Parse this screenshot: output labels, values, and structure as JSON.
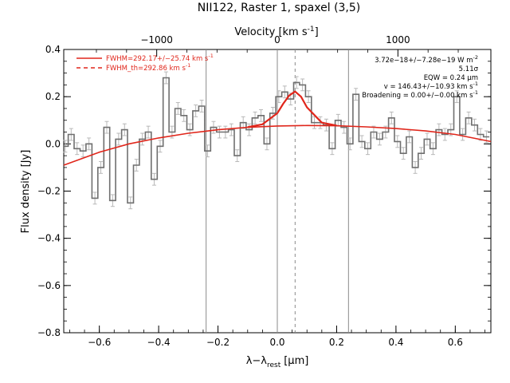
{
  "colors": {
    "data": "#6f6f6f",
    "errbar": "#b8b8b8",
    "fit": "#e0261b",
    "vline": "#8a8a8a"
  },
  "chart_data": {
    "type": "line",
    "title": "NII122, Raster 1, spaxel (3,5)",
    "xlabel": "λ−λ",
    "xlabel_sub": "rest",
    "xlabel_unit": "[μm]",
    "ylabel": "Flux density [Jy]",
    "top_xlabel": "Velocity [km s",
    "top_xlabel_exp": "-1",
    "top_xlabel_close": "]",
    "xlim": [
      -0.72,
      0.72
    ],
    "ylim": [
      -0.8,
      0.4
    ],
    "grid": false,
    "legend_position": "top-left",
    "xticks": [
      -0.6,
      -0.4,
      -0.2,
      0.0,
      0.2,
      0.4,
      0.6
    ],
    "xtick_labels": [
      "−0.6",
      "−0.4",
      "−0.2",
      "0.0",
      "0.2",
      "0.4",
      "0.6"
    ],
    "yticks": [
      -0.8,
      -0.6,
      -0.4,
      -0.2,
      0.0,
      0.2,
      0.4
    ],
    "ytick_labels": [
      "−0.8",
      "−0.6",
      "−0.4",
      "−0.2",
      "0.0",
      "0.2",
      "0.4"
    ],
    "velocity_ticks": [
      -1000,
      0,
      1000
    ],
    "velocity_tick_labels": [
      "−1000",
      "0",
      "1000"
    ],
    "vertical_lines": [
      -0.24,
      0.0,
      0.24
    ],
    "dashed_line": 0.06,
    "spectrum": {
      "x": [
        -0.715,
        -0.695,
        -0.675,
        -0.655,
        -0.635,
        -0.615,
        -0.595,
        -0.575,
        -0.555,
        -0.535,
        -0.515,
        -0.495,
        -0.475,
        -0.455,
        -0.435,
        -0.415,
        -0.395,
        -0.375,
        -0.355,
        -0.335,
        -0.315,
        -0.295,
        -0.275,
        -0.255,
        -0.235,
        -0.215,
        -0.195,
        -0.175,
        -0.155,
        -0.135,
        -0.115,
        -0.095,
        -0.075,
        -0.055,
        -0.035,
        -0.015,
        0.005,
        0.025,
        0.045,
        0.065,
        0.085,
        0.105,
        0.125,
        0.145,
        0.165,
        0.185,
        0.205,
        0.225,
        0.245,
        0.265,
        0.285,
        0.305,
        0.325,
        0.345,
        0.365,
        0.385,
        0.405,
        0.425,
        0.445,
        0.465,
        0.485,
        0.505,
        0.525,
        0.545,
        0.565,
        0.585,
        0.605,
        0.625,
        0.645,
        0.665,
        0.685,
        0.705
      ],
      "y": [
        -0.01,
        0.04,
        -0.02,
        -0.03,
        0.0,
        -0.23,
        -0.1,
        0.07,
        -0.24,
        0.02,
        0.06,
        -0.25,
        -0.09,
        0.02,
        0.05,
        -0.15,
        -0.01,
        0.28,
        0.05,
        0.15,
        0.12,
        0.06,
        0.14,
        0.16,
        -0.03,
        0.07,
        0.05,
        0.05,
        0.06,
        -0.05,
        0.09,
        0.06,
        0.11,
        0.12,
        0.0,
        0.13,
        0.2,
        0.22,
        0.19,
        0.26,
        0.25,
        0.2,
        0.09,
        0.09,
        0.08,
        -0.02,
        0.1,
        0.07,
        0.0,
        0.21,
        0.01,
        -0.02,
        0.05,
        0.02,
        0.05,
        0.11,
        0.01,
        -0.04,
        0.03,
        -0.1,
        -0.04,
        0.02,
        -0.02,
        0.06,
        0.04,
        0.06,
        0.2,
        0.04,
        0.11,
        0.08,
        0.04,
        0.03
      ],
      "err": 0.025
    },
    "continuum": {
      "x": [
        -0.72,
        -0.6,
        -0.5,
        -0.4,
        -0.3,
        -0.2,
        -0.1,
        0.0,
        0.1,
        0.2,
        0.3,
        0.4,
        0.5,
        0.6,
        0.72
      ],
      "y": [
        -0.09,
        -0.035,
        0.0,
        0.025,
        0.045,
        0.06,
        0.07,
        0.076,
        0.078,
        0.077,
        0.072,
        0.065,
        0.055,
        0.04,
        0.01
      ]
    },
    "gaussian_fit": {
      "x": [
        -0.1,
        -0.05,
        0.0,
        0.02,
        0.04,
        0.06,
        0.08,
        0.1,
        0.15,
        0.2
      ],
      "y": [
        0.071,
        0.083,
        0.13,
        0.17,
        0.205,
        0.222,
        0.2,
        0.155,
        0.09,
        0.078
      ]
    },
    "legend": [
      {
        "label": "FWHM=292.17+/−25.74 km s",
        "exp": "-1",
        "style": "solid"
      },
      {
        "label": "FWHM_th=292.86 km s",
        "exp": "-1",
        "style": "dashed"
      }
    ],
    "annotations": [
      {
        "text": "3.72e−18+/−7.28e−19 W m",
        "exp": "-2"
      },
      {
        "text": "5.11σ",
        "exp": ""
      },
      {
        "text": "EQW = 0.24 μm",
        "exp": ""
      },
      {
        "text": "v = 146.43+/−10.93 km s",
        "exp": "-1"
      },
      {
        "text": "Broadening = 0.00+/−0.00 km s",
        "exp": "-1"
      }
    ]
  }
}
